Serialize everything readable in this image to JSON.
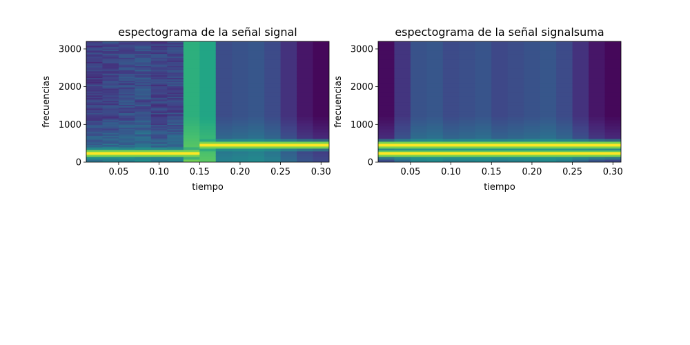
{
  "chart_data": [
    {
      "type": "heatmap",
      "title": "espectograma de la señal signal",
      "xlabel": "tiempo",
      "ylabel": "frecuencias",
      "xlim": [
        0.01,
        0.31
      ],
      "ylim": [
        0,
        3200
      ],
      "xticks": [
        "0.05",
        "0.10",
        "0.15",
        "0.20",
        "0.25",
        "0.30"
      ],
      "yticks": [
        "0",
        "1000",
        "2000",
        "3000"
      ],
      "colormap": "viridis",
      "segments": [
        {
          "t_start": 0.01,
          "t_end": 0.13,
          "background_level": 0.22,
          "tone_hz": 230,
          "tone_t_end": 0.15,
          "texture": "noisy"
        },
        {
          "t_start": 0.13,
          "t_end": 0.17,
          "background_level": 0.62,
          "tone_hz": 450,
          "tone_t_start": 0.15,
          "texture": "flat"
        },
        {
          "t_start": 0.17,
          "t_end": 0.31,
          "background_level": 0.25,
          "tone_hz": 450,
          "texture": "smooth",
          "fade_end_level": 0.02
        }
      ],
      "tones": [
        {
          "freq_hz": 230,
          "t_start": 0.01,
          "t_end": 0.15
        },
        {
          "freq_hz": 450,
          "t_start": 0.15,
          "t_end": 0.31
        }
      ]
    },
    {
      "type": "heatmap",
      "title": "espectograma de la señal signalsuma",
      "xlabel": "tiempo",
      "ylabel": "frecuencias",
      "xlim": [
        0.01,
        0.31
      ],
      "ylim": [
        0,
        3200
      ],
      "xticks": [
        "0.05",
        "0.10",
        "0.15",
        "0.20",
        "0.25",
        "0.30"
      ],
      "yticks": [
        "0",
        "1000",
        "2000",
        "3000"
      ],
      "colormap": "viridis",
      "segments": [
        {
          "t_start": 0.01,
          "t_end": 0.31,
          "background_level": 0.25,
          "texture": "smooth",
          "fade_start_level": 0.03,
          "fade_end_level": 0.02
        }
      ],
      "tones": [
        {
          "freq_hz": 230,
          "t_start": 0.01,
          "t_end": 0.31
        },
        {
          "freq_hz": 450,
          "t_start": 0.01,
          "t_end": 0.31
        }
      ]
    }
  ]
}
